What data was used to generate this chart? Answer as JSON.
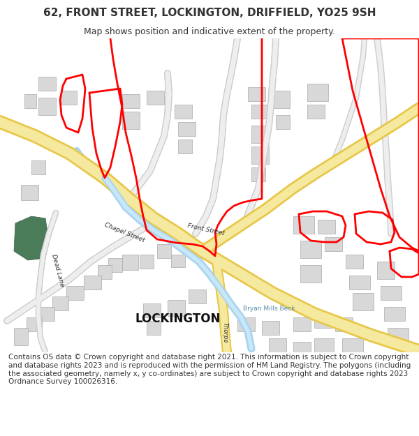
{
  "title": "62, FRONT STREET, LOCKINGTON, DRIFFIELD, YO25 9SH",
  "subtitle": "Map shows position and indicative extent of the property.",
  "footer": "Contains OS data © Crown copyright and database right 2021. This information is subject to Crown copyright and database rights 2023 and is reproduced with the permission of HM Land Registry. The polygons (including the associated geometry, namely x, y co-ordinates) are subject to Crown copyright and database rights 2023 Ordnance Survey 100026316.",
  "map_bg": "#f8f8f8",
  "road_yellow": "#f5e9a0",
  "road_outline": "#e8c84a",
  "road_grey": "#d0d0d0",
  "water_blue": "#aad4f0",
  "red_outline": "#ff0000",
  "green_fill": "#4a7c59",
  "text_color": "#333333",
  "building_fill": "#d8d8d8",
  "building_outline": "#aaaaaa",
  "title_fontsize": 11,
  "subtitle_fontsize": 9,
  "footer_fontsize": 7.5
}
